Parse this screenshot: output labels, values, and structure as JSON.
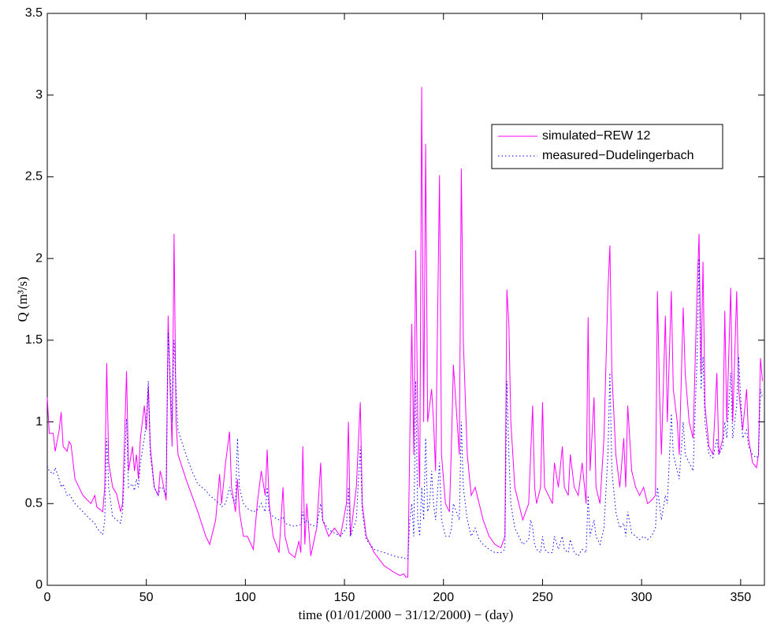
{
  "chart_data": {
    "type": "line",
    "xlabel": "time (01/01/2000 − 31/12/2000) − (day)",
    "ylabel": "Q (m³/s)",
    "xlim": [
      0,
      362
    ],
    "xticks": [
      0,
      50,
      100,
      150,
      200,
      250,
      300,
      350
    ],
    "ylim": [
      0,
      3.5
    ],
    "yticks": [
      0,
      0.5,
      1,
      1.5,
      2,
      2.5,
      3,
      3.5
    ],
    "legend": "upper right",
    "x": [
      0,
      1,
      3,
      4,
      6,
      7,
      8,
      10,
      11,
      12,
      14,
      18,
      22,
      24,
      25,
      28,
      29,
      30,
      31,
      33,
      35,
      37,
      38,
      39,
      40,
      41,
      43,
      44,
      45,
      46,
      47,
      49,
      50,
      51,
      52,
      54,
      56,
      57,
      58,
      60,
      61,
      62,
      63,
      64,
      65,
      66,
      70,
      73,
      76,
      80,
      82,
      85,
      87,
      88,
      90,
      92,
      93,
      95,
      96,
      97,
      99,
      101,
      104,
      106,
      108,
      110,
      111,
      112,
      114,
      117,
      119,
      120,
      122,
      125,
      127,
      128,
      129,
      130,
      131,
      133,
      136,
      138,
      139,
      142,
      145,
      148,
      151,
      152,
      153,
      156,
      158,
      159,
      161,
      165,
      170,
      175,
      178,
      180,
      181,
      182,
      183,
      184,
      185,
      186,
      187,
      188,
      189,
      190,
      191,
      192,
      193,
      194,
      195,
      196,
      198,
      199,
      201,
      203,
      204,
      205,
      208,
      209,
      210,
      212,
      214,
      216,
      218,
      220,
      223,
      226,
      229,
      231,
      232,
      233,
      234,
      236,
      238,
      240,
      243,
      244,
      245,
      246,
      247,
      249,
      250,
      251,
      253,
      255,
      256,
      258,
      260,
      261,
      263,
      264,
      266,
      268,
      270,
      272,
      273,
      274,
      276,
      277,
      279,
      281,
      283,
      284,
      285,
      287,
      289,
      291,
      292,
      293,
      295,
      297,
      299,
      301,
      303,
      305,
      307,
      308,
      309,
      310,
      312,
      313,
      315,
      316,
      318,
      319,
      321,
      322,
      324,
      326,
      328,
      329,
      330,
      331,
      332,
      334,
      336,
      338,
      339,
      341,
      342,
      343,
      345,
      346,
      348,
      349,
      351,
      353,
      354,
      356,
      358,
      359,
      360,
      361
    ],
    "series": [
      {
        "name": "simulated−REW 12",
        "color": "#ff00ff",
        "style": "solid",
        "values": [
          1.15,
          0.93,
          0.93,
          0.82,
          0.95,
          1.06,
          0.85,
          0.82,
          0.88,
          0.86,
          0.65,
          0.55,
          0.5,
          0.55,
          0.48,
          0.45,
          0.6,
          1.36,
          0.75,
          0.6,
          0.56,
          0.45,
          0.5,
          0.9,
          1.31,
          0.7,
          0.85,
          0.7,
          0.8,
          0.65,
          0.9,
          1.1,
          0.95,
          1.22,
          0.85,
          0.6,
          0.55,
          0.7,
          0.65,
          0.52,
          1.65,
          1.2,
          0.85,
          2.15,
          1.0,
          0.8,
          0.65,
          0.55,
          0.45,
          0.3,
          0.25,
          0.4,
          0.68,
          0.5,
          0.75,
          0.94,
          0.6,
          0.45,
          0.65,
          0.45,
          0.3,
          0.3,
          0.22,
          0.5,
          0.7,
          0.55,
          0.83,
          0.5,
          0.3,
          0.2,
          0.6,
          0.3,
          0.2,
          0.17,
          0.27,
          0.2,
          0.85,
          0.25,
          0.5,
          0.18,
          0.35,
          0.75,
          0.4,
          0.3,
          0.35,
          0.3,
          0.5,
          1.0,
          0.3,
          0.6,
          1.12,
          0.5,
          0.3,
          0.2,
          0.12,
          0.08,
          0.06,
          0.07,
          0.05,
          0.05,
          0.9,
          1.6,
          0.8,
          2.05,
          1.0,
          0.6,
          3.05,
          1.0,
          2.7,
          1.0,
          1.1,
          1.2,
          1.0,
          0.7,
          2.51,
          0.8,
          0.5,
          0.45,
          0.85,
          1.35,
          0.8,
          2.55,
          1.5,
          0.8,
          0.55,
          0.6,
          0.5,
          0.4,
          0.3,
          0.25,
          0.23,
          0.3,
          1.81,
          1.6,
          1.0,
          0.6,
          0.5,
          0.4,
          0.5,
          0.8,
          1.1,
          0.6,
          0.5,
          0.6,
          1.12,
          0.6,
          0.55,
          0.5,
          0.75,
          0.6,
          0.85,
          0.6,
          0.55,
          0.8,
          0.6,
          0.55,
          0.75,
          0.5,
          1.64,
          0.7,
          1.15,
          0.6,
          0.5,
          0.9,
          1.8,
          2.08,
          1.3,
          0.8,
          0.6,
          0.9,
          0.6,
          1.1,
          0.7,
          0.6,
          0.55,
          0.6,
          0.5,
          0.52,
          0.55,
          1.8,
          1.2,
          0.8,
          1.65,
          1.0,
          1.8,
          1.2,
          1.0,
          0.8,
          1.7,
          1.3,
          1.0,
          0.9,
          1.8,
          2.15,
          1.3,
          1.98,
          1.1,
          0.85,
          0.8,
          1.3,
          0.8,
          0.9,
          1.68,
          1.0,
          1.82,
          1.0,
          1.8,
          1.2,
          0.95,
          1.2,
          0.9,
          0.75,
          0.72,
          0.8,
          1.39,
          1.25
        ]
      },
      {
        "name": "measured−Dudelingerbach",
        "color": "#0000ff",
        "style": "dotted",
        "values": [
          0.73,
          0.7,
          0.68,
          0.72,
          0.65,
          0.6,
          0.62,
          0.55,
          0.56,
          0.54,
          0.5,
          0.45,
          0.4,
          0.38,
          0.35,
          0.31,
          0.4,
          0.9,
          0.6,
          0.42,
          0.4,
          0.38,
          0.45,
          0.7,
          1.02,
          0.6,
          0.62,
          0.58,
          0.65,
          0.6,
          0.75,
          0.9,
          1.0,
          1.25,
          0.8,
          0.6,
          0.55,
          0.6,
          0.6,
          0.55,
          1.55,
          1.3,
          1.0,
          1.5,
          1.2,
          0.95,
          0.8,
          0.7,
          0.62,
          0.58,
          0.55,
          0.52,
          0.5,
          0.48,
          0.5,
          0.6,
          0.55,
          0.5,
          0.9,
          0.6,
          0.5,
          0.47,
          0.45,
          0.46,
          0.5,
          0.45,
          0.6,
          0.45,
          0.42,
          0.4,
          0.42,
          0.38,
          0.37,
          0.36,
          0.37,
          0.37,
          0.45,
          0.38,
          0.4,
          0.37,
          0.36,
          0.5,
          0.4,
          0.34,
          0.32,
          0.3,
          0.35,
          0.6,
          0.3,
          0.4,
          0.85,
          0.45,
          0.28,
          0.22,
          0.2,
          0.18,
          0.17,
          0.17,
          0.16,
          0.16,
          0.4,
          0.5,
          0.3,
          1.25,
          0.4,
          0.3,
          0.6,
          0.4,
          0.9,
          0.45,
          0.5,
          0.7,
          0.5,
          0.4,
          0.75,
          0.4,
          0.3,
          0.3,
          0.35,
          0.5,
          0.4,
          1.0,
          0.6,
          0.4,
          0.3,
          0.35,
          0.28,
          0.25,
          0.22,
          0.2,
          0.2,
          0.22,
          1.25,
          0.8,
          0.5,
          0.35,
          0.3,
          0.25,
          0.28,
          0.4,
          0.35,
          0.25,
          0.22,
          0.2,
          0.3,
          0.22,
          0.2,
          0.2,
          0.3,
          0.22,
          0.3,
          0.22,
          0.2,
          0.28,
          0.2,
          0.18,
          0.22,
          0.2,
          0.55,
          0.3,
          0.4,
          0.3,
          0.25,
          0.35,
          0.8,
          1.3,
          0.7,
          0.45,
          0.35,
          0.38,
          0.3,
          0.45,
          0.32,
          0.3,
          0.28,
          0.3,
          0.28,
          0.3,
          0.35,
          0.6,
          0.5,
          0.4,
          0.55,
          0.5,
          1.05,
          0.8,
          0.7,
          0.65,
          1.0,
          0.8,
          0.75,
          0.7,
          1.4,
          2.0,
          1.2,
          1.4,
          1.0,
          0.8,
          0.78,
          0.9,
          0.8,
          0.85,
          1.0,
          0.9,
          1.3,
          0.9,
          1.1,
          1.4,
          0.9,
          0.95,
          0.85,
          0.8,
          0.78,
          0.8,
          1.2,
          1.15
        ]
      }
    ]
  }
}
